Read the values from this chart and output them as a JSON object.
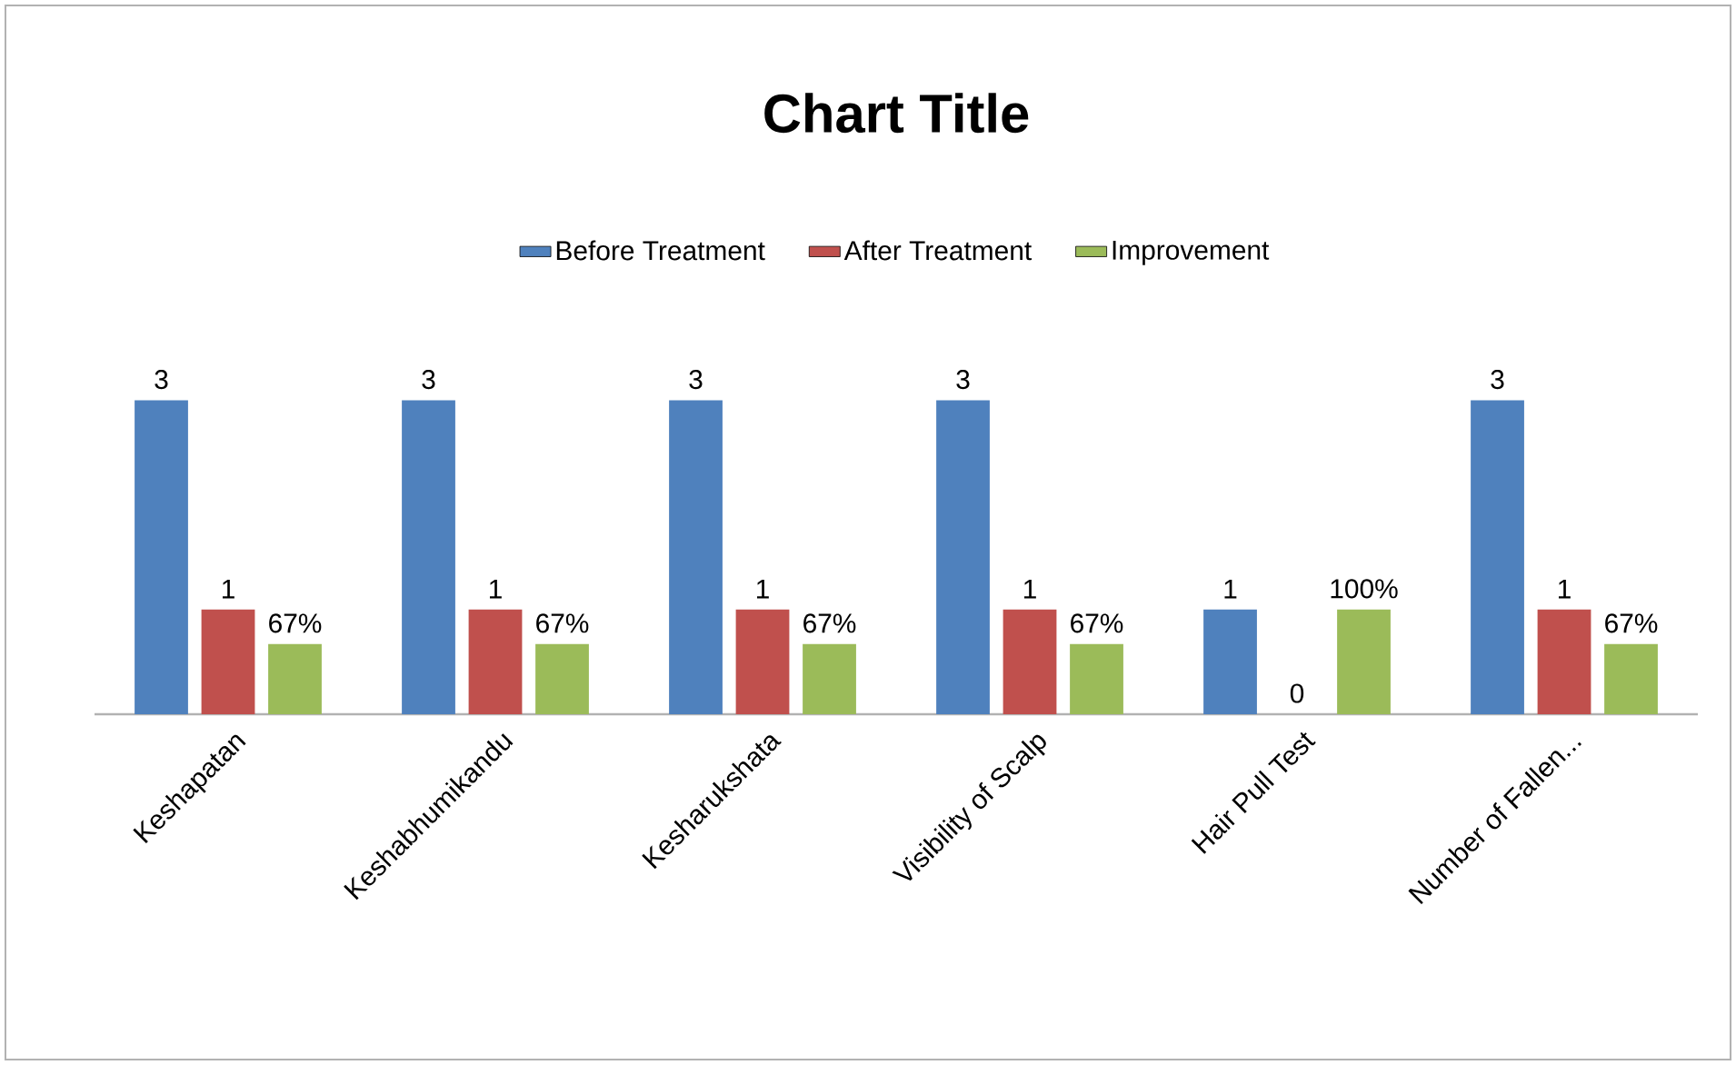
{
  "chart_data": {
    "type": "bar",
    "title": "Chart Title",
    "categories": [
      "Keshapatan",
      "Keshabhumikandu",
      "Kesharukshata",
      "Visibility of Scalp",
      "Hair Pull Test",
      "Number of Fallen..."
    ],
    "series": [
      {
        "name": "Before Treatment",
        "color": "#4f81bd",
        "values": [
          3,
          3,
          3,
          3,
          1,
          3
        ],
        "value_labels": [
          "3",
          "3",
          "3",
          "3",
          "1",
          "3"
        ]
      },
      {
        "name": "After Treatment",
        "color": "#c0504d",
        "values": [
          1,
          1,
          1,
          1,
          0,
          1
        ],
        "value_labels": [
          "1",
          "1",
          "1",
          "1",
          "0",
          "1"
        ]
      },
      {
        "name": "Improvement",
        "color": "#9bbb59",
        "values": [
          0.67,
          0.67,
          0.67,
          0.67,
          1,
          0.67
        ],
        "value_labels": [
          "67%",
          "67%",
          "67%",
          "67%",
          "100%",
          "67%"
        ]
      }
    ],
    "legend": "top"
  }
}
